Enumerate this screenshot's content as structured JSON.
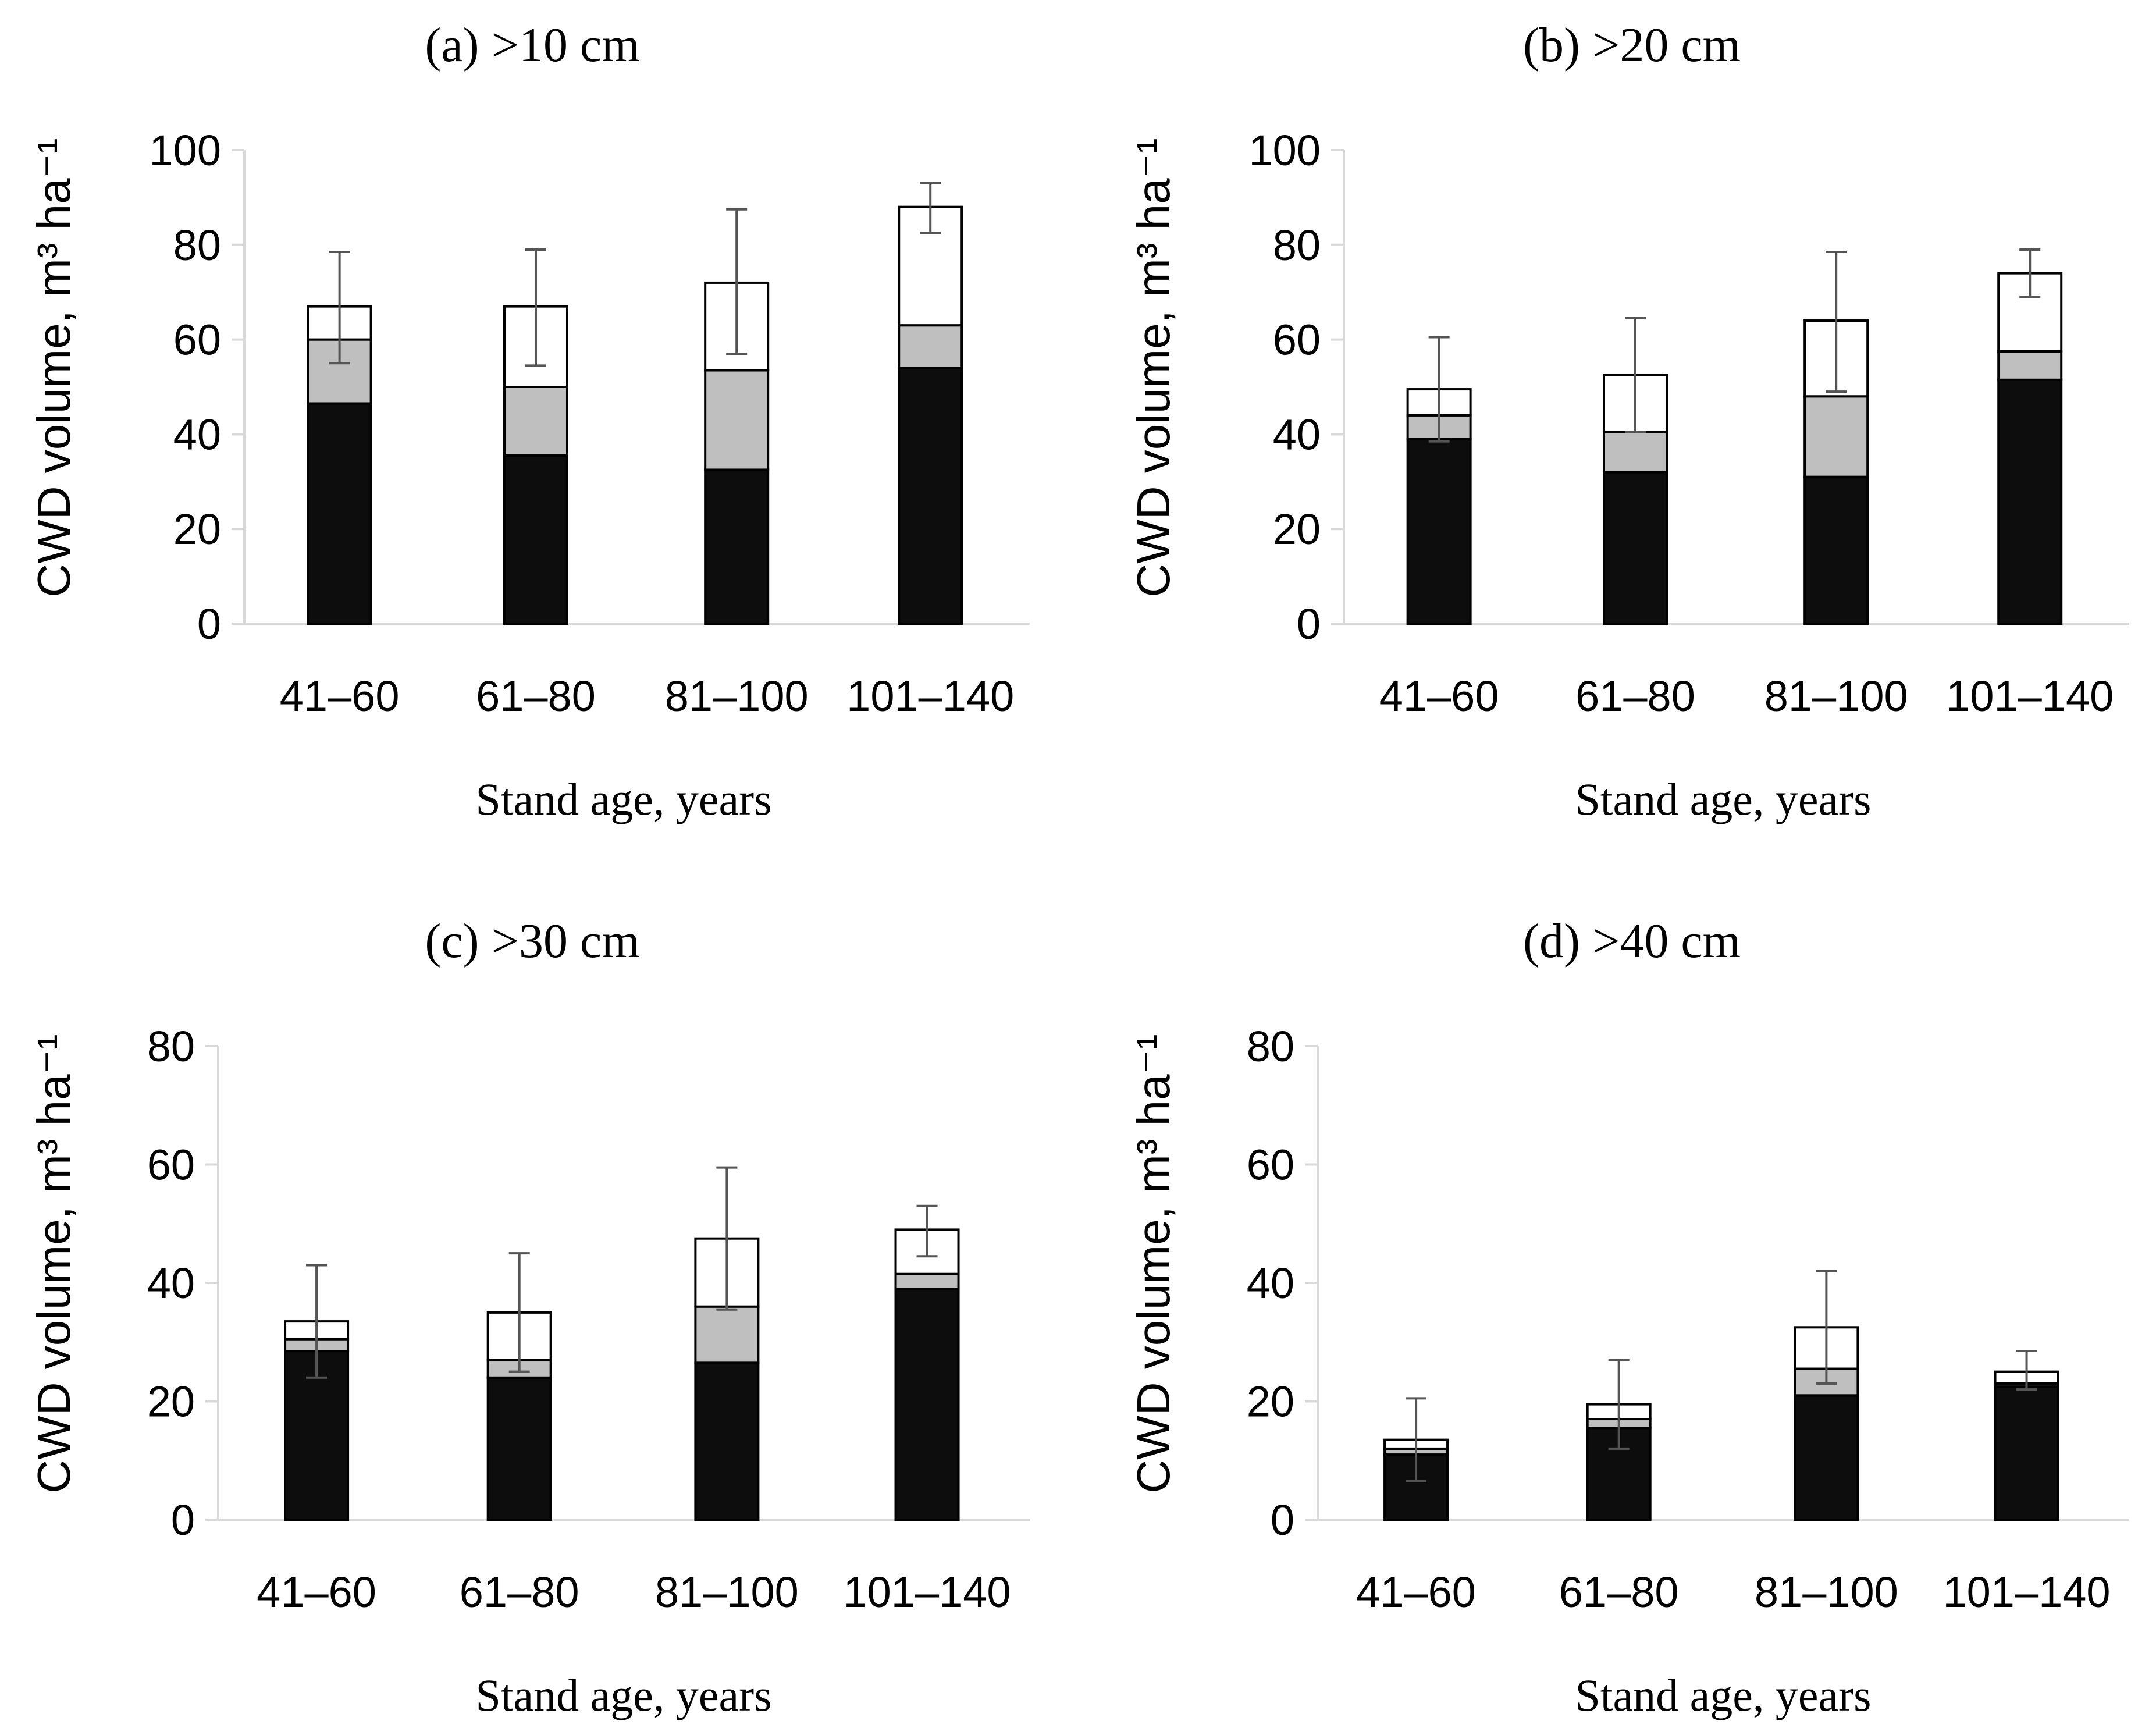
{
  "chart_data": [
    {
      "type": "bar",
      "stacked": true,
      "title": "(a) >10 cm",
      "xlabel": "Stand age, years",
      "ylabel": "CWD volume, m³ ha⁻¹",
      "ylim": [
        0,
        100
      ],
      "yticks": [
        0,
        20,
        40,
        60,
        80,
        100
      ],
      "categories": [
        "41–60",
        "61–80",
        "81–100",
        "101–140"
      ],
      "series": [
        {
          "color": "#0d0d0d",
          "values": [
            46.5,
            35.5,
            32.5,
            54
          ]
        },
        {
          "color": "#bfbfbf",
          "values": [
            13.5,
            14.5,
            21,
            9
          ]
        },
        {
          "color": "#ffffff",
          "values": [
            7,
            17,
            18.5,
            25
          ]
        }
      ],
      "totals": [
        67,
        67,
        72,
        88
      ],
      "error_bars": [
        {
          "low": 55,
          "high": 78.5
        },
        {
          "low": 54.5,
          "high": 79
        },
        {
          "low": 57,
          "high": 87.5
        },
        {
          "low": 82.5,
          "high": 93
        }
      ]
    },
    {
      "type": "bar",
      "stacked": true,
      "title": "(b) >20 cm",
      "xlabel": "Stand age, years",
      "ylabel": "CWD volume, m³ ha⁻¹",
      "ylim": [
        0,
        100
      ],
      "yticks": [
        0,
        20,
        40,
        60,
        80,
        100
      ],
      "categories": [
        "41–60",
        "61–80",
        "81–100",
        "101–140"
      ],
      "series": [
        {
          "color": "#0d0d0d",
          "values": [
            39,
            32,
            31,
            51.5
          ]
        },
        {
          "color": "#bfbfbf",
          "values": [
            5,
            8.5,
            17,
            6
          ]
        },
        {
          "color": "#ffffff",
          "values": [
            5.5,
            12,
            16,
            16.5
          ]
        }
      ],
      "totals": [
        49.5,
        52.5,
        64,
        74
      ],
      "error_bars": [
        {
          "low": 38.5,
          "high": 60.5
        },
        {
          "low": 40.5,
          "high": 64.5
        },
        {
          "low": 49,
          "high": 78.5
        },
        {
          "low": 69,
          "high": 79
        }
      ]
    },
    {
      "type": "bar",
      "stacked": true,
      "title": "(c) >30 cm",
      "xlabel": "Stand age, years",
      "ylabel": "CWD volume, m³ ha⁻¹",
      "ylim": [
        0,
        80
      ],
      "yticks": [
        0,
        20,
        40,
        60,
        80
      ],
      "categories": [
        "41–60",
        "61–80",
        "81–100",
        "101–140"
      ],
      "series": [
        {
          "color": "#0d0d0d",
          "values": [
            28.5,
            24,
            26.5,
            39
          ]
        },
        {
          "color": "#bfbfbf",
          "values": [
            2,
            3,
            9.5,
            2.5
          ]
        },
        {
          "color": "#ffffff",
          "values": [
            3,
            8,
            11.5,
            7.5
          ]
        }
      ],
      "totals": [
        33.5,
        35,
        47.5,
        49
      ],
      "error_bars": [
        {
          "low": 24,
          "high": 43
        },
        {
          "low": 25,
          "high": 45
        },
        {
          "low": 35.5,
          "high": 59.5
        },
        {
          "low": 44.5,
          "high": 53
        }
      ]
    },
    {
      "type": "bar",
      "stacked": true,
      "title": "(d) >40 cm",
      "xlabel": "Stand age, years",
      "ylabel": "CWD volume, m³ ha⁻¹",
      "ylim": [
        0,
        80
      ],
      "yticks": [
        0,
        20,
        40,
        60,
        80
      ],
      "categories": [
        "41–60",
        "61–80",
        "81–100",
        "101–140"
      ],
      "series": [
        {
          "color": "#0d0d0d",
          "values": [
            11,
            15.5,
            21,
            22.5
          ]
        },
        {
          "color": "#bfbfbf",
          "values": [
            1,
            1.5,
            4.5,
            0.5
          ]
        },
        {
          "color": "#ffffff",
          "values": [
            1.5,
            2.5,
            7,
            2
          ]
        }
      ],
      "totals": [
        13.5,
        19.5,
        32.5,
        25
      ],
      "error_bars": [
        {
          "low": 6.5,
          "high": 20.5
        },
        {
          "low": 12,
          "high": 27
        },
        {
          "low": 23,
          "high": 42
        },
        {
          "low": 22,
          "high": 28.5
        }
      ]
    }
  ]
}
